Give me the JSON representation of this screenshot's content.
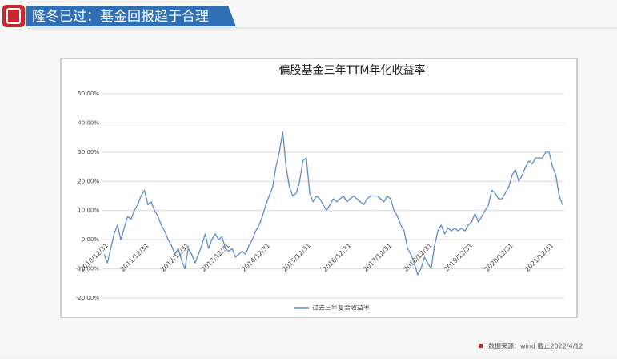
{
  "header": {
    "title": "隆冬已过：基金回报趋于合理"
  },
  "footer": {
    "source": "数据来源：wind  截止2022/4/12"
  },
  "chart_data": {
    "type": "line",
    "title": "偏股基金三年TTM年化收益率",
    "categories": [
      "2010/12/31",
      null,
      null,
      null,
      null,
      null,
      null,
      null,
      null,
      null,
      null,
      null,
      "2011/12/31",
      null,
      null,
      null,
      null,
      null,
      null,
      null,
      null,
      null,
      null,
      null,
      "2012/12/31",
      null,
      null,
      null,
      null,
      null,
      null,
      null,
      null,
      null,
      null,
      null,
      "2013/12/31",
      null,
      null,
      null,
      null,
      null,
      null,
      null,
      null,
      null,
      null,
      null,
      "2014/12/31",
      null,
      null,
      null,
      null,
      null,
      null,
      null,
      null,
      null,
      null,
      null,
      "2015/12/31",
      null,
      null,
      null,
      null,
      null,
      null,
      null,
      null,
      null,
      null,
      null,
      "2016/12/31",
      null,
      null,
      null,
      null,
      null,
      null,
      null,
      null,
      null,
      null,
      null,
      "2017/12/31",
      null,
      null,
      null,
      null,
      null,
      null,
      null,
      null,
      null,
      null,
      null,
      "2018/12/31",
      null,
      null,
      null,
      null,
      null,
      null,
      null,
      null,
      null,
      null,
      null,
      "2019/12/31",
      null,
      null,
      null,
      null,
      null,
      null,
      null,
      null,
      null,
      null,
      null,
      "2020/12/31",
      null,
      null,
      null,
      null,
      null,
      null,
      null,
      null,
      null,
      null,
      null,
      "2021/12/31",
      null,
      null,
      null,
      null
    ],
    "series": [
      {
        "name": "过去三年复合收益率",
        "color": "#5b8ec6",
        "values": [
          -5,
          -8,
          -3,
          2,
          5,
          0,
          4,
          8,
          7,
          10,
          12,
          15,
          17,
          12,
          13,
          10,
          8,
          5,
          3,
          0,
          -2,
          -5,
          -3,
          -7,
          -10,
          -3,
          -5,
          -8,
          -5,
          -2,
          2,
          -3,
          0,
          2,
          0,
          1,
          -3,
          -4,
          -3,
          -6,
          -5,
          -4,
          -5,
          -2,
          0,
          3,
          5,
          8,
          12,
          15,
          18,
          25,
          30,
          37,
          25,
          18,
          15,
          16,
          20,
          27,
          28,
          16,
          13,
          15,
          14,
          12,
          10,
          12,
          14,
          13,
          14,
          15,
          13,
          14,
          15,
          14,
          13,
          12,
          14,
          15,
          15,
          15,
          14,
          13,
          15,
          14,
          10,
          8,
          5,
          3,
          -3,
          -5,
          -8,
          -12,
          -10,
          -6,
          -8,
          -10,
          -2,
          3,
          5,
          2,
          4,
          3,
          4,
          3,
          4,
          3,
          5,
          6,
          9,
          6,
          8,
          10,
          12,
          17,
          16,
          14,
          14,
          16,
          18,
          22,
          24,
          20,
          22,
          25,
          27,
          26,
          28,
          28,
          28,
          30,
          30,
          25,
          22,
          15,
          12
        ]
      }
    ],
    "ylim": [
      -20,
      50
    ],
    "yticks": [
      {
        "value": -20,
        "label": "-20.00%"
      },
      {
        "value": -10,
        "label": "-10.00%"
      },
      {
        "value": 0,
        "label": "0.00%"
      },
      {
        "value": 10,
        "label": "10.00%"
      },
      {
        "value": 20,
        "label": "20.00%"
      },
      {
        "value": 30,
        "label": "30.00%"
      },
      {
        "value": 40,
        "label": "40.00%"
      },
      {
        "value": 50,
        "label": "50.00%"
      }
    ],
    "grid": true,
    "legend": "bottom"
  }
}
